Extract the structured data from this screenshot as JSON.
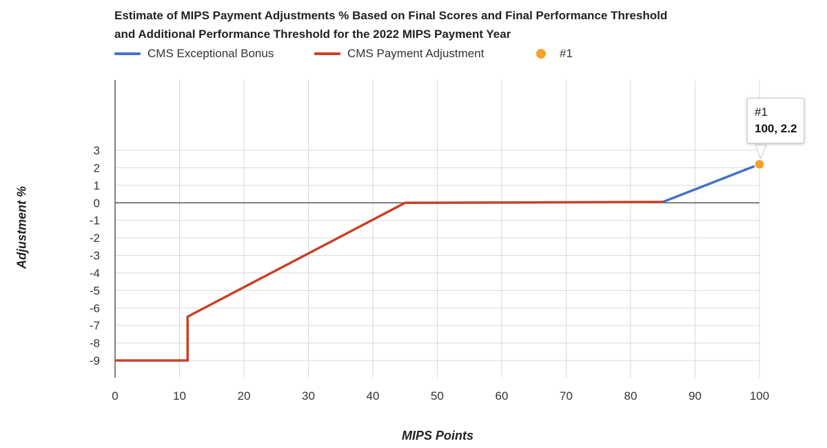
{
  "chart_data": {
    "type": "line",
    "title_lines": [
      "Estimate of MIPS Payment Adjustments % Based on Final Scores and Final Performance Threshold",
      "and Additional Performance Threshold for the 2022 MIPS Payment Year"
    ],
    "xlabel": "MIPS Points",
    "ylabel": "Adjustment %",
    "xlim": [
      0,
      100
    ],
    "ylim": [
      -9,
      3
    ],
    "x_ticks": [
      0,
      10,
      20,
      30,
      40,
      50,
      60,
      70,
      80,
      90,
      100
    ],
    "y_ticks": [
      3,
      2,
      1,
      0,
      -1,
      -2,
      -3,
      -4,
      -5,
      -6,
      -7,
      -8,
      -9
    ],
    "grid": true,
    "legend_position": "top",
    "series": [
      {
        "name": "CMS Exceptional Bonus",
        "color": "#4472c4",
        "x": [
          85,
          100
        ],
        "y": [
          0.05,
          2.2
        ]
      },
      {
        "name": "CMS Payment Adjustment",
        "color": "#c94027",
        "x": [
          0,
          11.25,
          11.25,
          45,
          85
        ],
        "y": [
          -9,
          -9,
          -6.5,
          0,
          0.05
        ]
      }
    ],
    "points": [
      {
        "name": "#1",
        "color": "#f7a02b",
        "x": 100,
        "y": 2.2
      }
    ],
    "tooltip": {
      "name": "#1",
      "value": "100, 2.2"
    }
  }
}
